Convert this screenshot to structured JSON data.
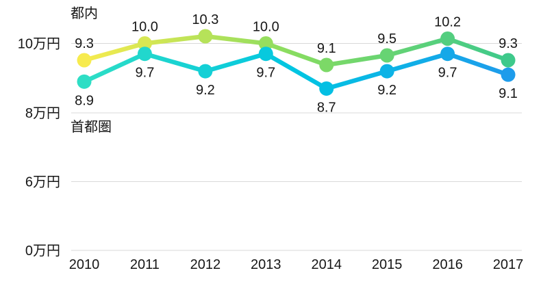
{
  "chart_data": {
    "type": "line",
    "title": "",
    "categories": [
      "2010",
      "2011",
      "2012",
      "2013",
      "2014",
      "2015",
      "2016",
      "2017"
    ],
    "series": [
      {
        "name": "都内",
        "values": [
          9.3,
          10.0,
          10.3,
          10.0,
          9.1,
          9.5,
          10.2,
          9.3
        ],
        "value_labels": [
          "9.3",
          "10.0",
          "10.3",
          "10.0",
          "9.1",
          "9.5",
          "10.2",
          "9.3"
        ],
        "label_position": "above",
        "gradient_stops": [
          "#F7EB4E",
          "#86DC61",
          "#3EC98B"
        ]
      },
      {
        "name": "首都圏",
        "values": [
          8.9,
          9.7,
          9.2,
          9.7,
          8.7,
          9.2,
          9.7,
          9.1
        ],
        "value_labels": [
          "8.9",
          "9.7",
          "9.2",
          "9.7",
          "8.7",
          "9.2",
          "9.7",
          "9.1"
        ],
        "label_position": "below",
        "gradient_stops": [
          "#2EDEC5",
          "#00C5E2",
          "#1E9CEB"
        ]
      }
    ],
    "y_ticks": [
      "10万円",
      "8万円",
      "6万円",
      "0万円"
    ],
    "y_tick_values": [
      10,
      8,
      6,
      0
    ],
    "unit": "万円",
    "grid": true,
    "legend_position": "inline-left",
    "colors": {
      "background": "#FFFFFF",
      "grid_line": "#D9D9D9",
      "text": "#161616"
    }
  }
}
